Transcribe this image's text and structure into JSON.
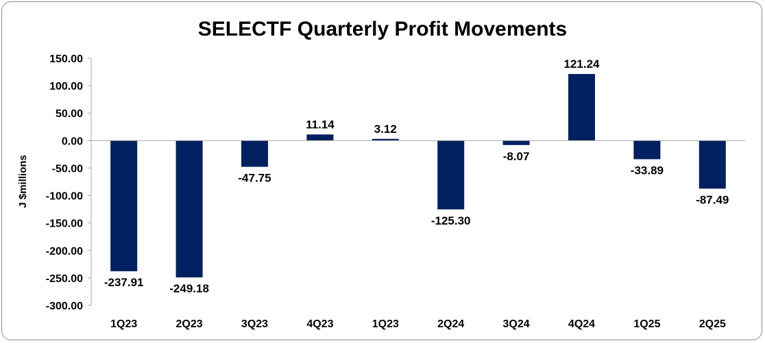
{
  "chart_data": {
    "type": "bar",
    "title": "SELECTF Quarterly Profit Movements",
    "xlabel": "",
    "ylabel": "J $millions",
    "categories": [
      "1Q23",
      "2Q23",
      "3Q23",
      "4Q23",
      "1Q23",
      "2Q24",
      "3Q24",
      "4Q24",
      "1Q25",
      "2Q25"
    ],
    "values": [
      -237.91,
      -249.18,
      -47.75,
      11.14,
      3.12,
      -125.3,
      -8.07,
      121.24,
      -33.89,
      -87.49
    ],
    "value_labels": [
      "-237.91",
      "-249.18",
      "-47.75",
      "11.14",
      "3.12",
      "-125.30",
      "-8.07",
      "121.24",
      "-33.89",
      "-87.49"
    ],
    "yticks": [
      "150.00",
      "100.00",
      "50.00",
      "0.00",
      "-50.00",
      "-100.00",
      "-150.00",
      "-200.00",
      "-250.00",
      "-300.00"
    ],
    "ylim": [
      -300,
      150
    ],
    "grid": false,
    "legend": "none",
    "bar_color": "#002060"
  }
}
